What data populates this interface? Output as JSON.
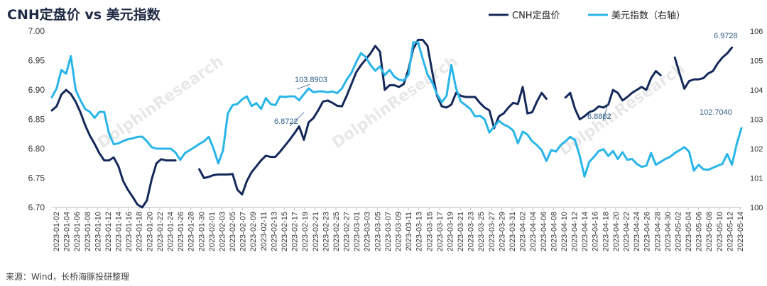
{
  "chart_data": {
    "type": "line",
    "title": "CNH定盘价 vs 美元指数",
    "source": "来源：Wind，长桥海豚投研整理",
    "watermark": "DolphinResearch",
    "colors": {
      "cnh": "#14295a",
      "dxy": "#29b5e8",
      "anno": "#2e5c8a",
      "title": "#1f2a44"
    },
    "y_left": {
      "min": 6.7,
      "max": 7.0,
      "ticks": [
        "7.00",
        "6.95",
        "6.90",
        "6.85",
        "6.80",
        "6.75",
        "6.70"
      ]
    },
    "y_right": {
      "min": 100,
      "max": 106,
      "ticks": [
        "106",
        "105",
        "104",
        "103",
        "102",
        "101",
        "100"
      ]
    },
    "x_labels": [
      "2023-01-02",
      "2023-01-04",
      "2023-01-06",
      "2023-01-08",
      "2023-01-10",
      "2023-01-12",
      "2023-01-14",
      "2023-01-16",
      "2023-01-18",
      "2023-01-20",
      "2023-01-22",
      "2023-01-24",
      "2023-01-26",
      "2023-01-28",
      "2023-01-30",
      "2023-02-01",
      "2023-02-03",
      "2023-02-05",
      "2023-02-07",
      "2023-02-09",
      "2023-02-11",
      "2023-02-13",
      "2023-02-15",
      "2023-02-17",
      "2023-02-19",
      "2023-02-21",
      "2023-02-23",
      "2023-02-25",
      "2023-02-27",
      "2023-03-01",
      "2023-03-03",
      "2023-03-05",
      "2023-03-07",
      "2023-03-09",
      "2023-03-11",
      "2023-03-13",
      "2023-03-15",
      "2023-03-17",
      "2023-03-19",
      "2023-03-21",
      "2023-03-23",
      "2023-03-25",
      "2023-03-27",
      "2023-03-29",
      "2023-03-31",
      "2023-04-02",
      "2023-04-04",
      "2023-04-06",
      "2023-04-08",
      "2023-04-10",
      "2023-04-12",
      "2023-04-14",
      "2023-04-16",
      "2023-04-18",
      "2023-04-20",
      "2023-04-22",
      "2023-04-24",
      "2023-04-26",
      "2023-04-28",
      "2023-04-30",
      "2023-05-02",
      "2023-05-04",
      "2023-05-06",
      "2023-05-08",
      "2023-05-10",
      "2023-05-12",
      "2023-05-14"
    ],
    "day_count": 134,
    "series": [
      {
        "name": "CNH定盘价",
        "axis": "left",
        "points": [
          [
            0,
            6.865
          ],
          [
            1,
            6.872
          ],
          [
            2,
            6.892
          ],
          [
            3,
            6.9
          ],
          [
            4,
            6.893
          ],
          [
            5,
            6.88
          ],
          [
            6,
            6.862
          ],
          [
            7,
            6.84
          ],
          [
            8,
            6.822
          ],
          [
            9,
            6.808
          ],
          [
            10,
            6.792
          ],
          [
            11,
            6.78
          ],
          [
            12,
            6.78
          ],
          [
            13,
            6.785
          ],
          [
            14,
            6.77
          ],
          [
            15,
            6.745
          ],
          [
            16,
            6.73
          ],
          [
            17,
            6.718
          ],
          [
            18,
            6.705
          ],
          [
            19,
            6.7
          ],
          [
            20,
            6.712
          ],
          [
            21,
            6.748
          ],
          [
            22,
            6.775
          ],
          [
            23,
            6.782
          ],
          [
            24,
            6.78
          ],
          [
            25,
            6.78
          ],
          [
            26,
            6.78
          ],
          [
            27,
            null
          ],
          [
            30,
            null
          ],
          [
            31,
            6.765
          ],
          [
            32,
            6.75
          ],
          [
            33,
            6.752
          ],
          [
            34,
            6.755
          ],
          [
            35,
            6.756
          ],
          [
            36,
            6.756
          ],
          [
            37,
            6.756
          ],
          [
            38,
            6.757
          ],
          [
            39,
            6.73
          ],
          [
            40,
            6.722
          ],
          [
            41,
            6.745
          ],
          [
            42,
            6.76
          ],
          [
            43,
            6.77
          ],
          [
            44,
            6.78
          ],
          [
            45,
            6.788
          ],
          [
            46,
            6.786
          ],
          [
            47,
            6.786
          ],
          [
            48,
            6.795
          ],
          [
            49,
            6.805
          ],
          [
            50,
            6.815
          ],
          [
            51,
            6.826
          ],
          [
            52,
            6.838
          ],
          [
            53,
            6.815
          ],
          [
            54,
            6.845
          ],
          [
            55,
            6.852
          ],
          [
            56,
            6.865
          ],
          [
            57,
            6.88
          ],
          [
            58,
            6.882
          ],
          [
            59,
            6.878
          ],
          [
            60,
            6.873
          ],
          [
            61,
            6.872
          ],
          [
            62,
            6.89
          ],
          [
            63,
            6.91
          ],
          [
            64,
            6.93
          ],
          [
            65,
            6.942
          ],
          [
            66,
            6.952
          ],
          [
            67,
            6.962
          ],
          [
            68,
            6.975
          ],
          [
            69,
            6.965
          ],
          [
            70,
            6.9
          ],
          [
            71,
            6.908
          ],
          [
            72,
            6.908
          ],
          [
            73,
            6.905
          ],
          [
            74,
            6.91
          ],
          [
            75,
            6.935
          ],
          [
            76,
            6.97
          ],
          [
            77,
            6.985
          ],
          [
            78,
            6.985
          ],
          [
            79,
            6.975
          ],
          [
            80,
            6.93
          ],
          [
            81,
            6.89
          ],
          [
            82,
            6.872
          ],
          [
            83,
            6.87
          ],
          [
            84,
            6.875
          ],
          [
            85,
            6.895
          ],
          [
            86,
            6.89
          ],
          [
            87,
            6.888
          ],
          [
            88,
            6.888
          ],
          [
            89,
            6.888
          ],
          [
            90,
            6.878
          ],
          [
            91,
            6.87
          ],
          [
            92,
            6.865
          ],
          [
            93,
            6.835
          ],
          [
            94,
            6.855
          ],
          [
            95,
            6.86
          ],
          [
            96,
            6.87
          ],
          [
            97,
            6.878
          ],
          [
            98,
            6.876
          ],
          [
            99,
            6.905
          ],
          [
            100,
            6.86
          ],
          [
            101,
            6.862
          ],
          [
            102,
            6.88
          ],
          [
            103,
            6.895
          ],
          [
            104,
            6.885
          ],
          [
            105,
            null
          ],
          [
            107,
            null
          ],
          [
            108,
            6.887
          ],
          [
            109,
            6.895
          ],
          [
            110,
            6.868
          ],
          [
            111,
            6.85
          ],
          [
            112,
            6.855
          ],
          [
            113,
            6.862
          ],
          [
            114,
            6.865
          ],
          [
            115,
            6.872
          ],
          [
            116,
            6.87
          ],
          [
            117,
            6.875
          ],
          [
            118,
            6.9
          ],
          [
            119,
            6.895
          ],
          [
            120,
            6.882
          ],
          [
            121,
            6.888
          ],
          [
            122,
            6.895
          ],
          [
            123,
            6.9
          ],
          [
            124,
            6.905
          ],
          [
            125,
            6.9
          ],
          [
            126,
            6.92
          ],
          [
            127,
            6.932
          ],
          [
            128,
            6.925
          ],
          [
            129,
            null
          ],
          [
            131,
            null
          ],
          [
            131,
            6.955
          ],
          [
            132,
            6.928
          ],
          [
            133,
            6.902
          ],
          [
            134,
            6.915
          ],
          [
            135,
            6.918
          ],
          [
            136,
            6.918
          ],
          [
            137,
            6.92
          ],
          [
            138,
            6.928
          ],
          [
            139,
            6.932
          ],
          [
            140,
            6.945
          ],
          [
            141,
            6.955
          ],
          [
            142,
            6.962
          ],
          [
            143,
            6.972
          ]
        ]
      },
      {
        "name": "美元指数（右轴）",
        "axis": "right",
        "points": [
          [
            0,
            103.75
          ],
          [
            1,
            104.05
          ],
          [
            2,
            104.68
          ],
          [
            3,
            104.55
          ],
          [
            4,
            105.15
          ],
          [
            5,
            104.0
          ],
          [
            6,
            103.65
          ],
          [
            7,
            103.35
          ],
          [
            8,
            103.25
          ],
          [
            9,
            103.05
          ],
          [
            10,
            103.25
          ],
          [
            11,
            103.25
          ],
          [
            12,
            102.52
          ],
          [
            13,
            102.15
          ],
          [
            14,
            102.18
          ],
          [
            15,
            102.26
          ],
          [
            16,
            102.32
          ],
          [
            17,
            102.35
          ],
          [
            18,
            102.4
          ],
          [
            19,
            102.41
          ],
          [
            20,
            102.25
          ],
          [
            21,
            102.05
          ],
          [
            22,
            102.0
          ],
          [
            23,
            102.0
          ],
          [
            24,
            102.0
          ],
          [
            25,
            102.0
          ],
          [
            26,
            101.87
          ],
          [
            27,
            101.62
          ],
          [
            28,
            101.85
          ],
          [
            29,
            101.95
          ],
          [
            30,
            102.05
          ],
          [
            31,
            102.16
          ],
          [
            32,
            102.25
          ],
          [
            33,
            102.4
          ],
          [
            34,
            102.0
          ],
          [
            35,
            101.5
          ],
          [
            36,
            101.95
          ],
          [
            37,
            103.2
          ],
          [
            38,
            103.48
          ],
          [
            39,
            103.52
          ],
          [
            40,
            103.68
          ],
          [
            41,
            103.78
          ],
          [
            42,
            103.45
          ],
          [
            43,
            103.55
          ],
          [
            44,
            103.35
          ],
          [
            45,
            103.72
          ],
          [
            46,
            103.52
          ],
          [
            47,
            103.48
          ],
          [
            48,
            103.78
          ],
          [
            49,
            103.76
          ],
          [
            50,
            103.78
          ],
          [
            51,
            103.78
          ],
          [
            52,
            103.65
          ],
          [
            53,
            103.85
          ],
          [
            54,
            104.05
          ],
          [
            55,
            103.92
          ],
          [
            56,
            103.95
          ],
          [
            57,
            103.95
          ],
          [
            58,
            103.92
          ],
          [
            59,
            103.95
          ],
          [
            60,
            103.89
          ],
          [
            61,
            104.05
          ],
          [
            62,
            104.35
          ],
          [
            63,
            104.58
          ],
          [
            64,
            104.95
          ],
          [
            65,
            105.25
          ],
          [
            66,
            105.12
          ],
          [
            67,
            104.85
          ],
          [
            68,
            104.65
          ],
          [
            69,
            104.8
          ],
          [
            70,
            104.5
          ],
          [
            71,
            104.68
          ],
          [
            72,
            104.45
          ],
          [
            73,
            104.35
          ],
          [
            74,
            104.32
          ],
          [
            75,
            104.52
          ],
          [
            76,
            105.62
          ],
          [
            77,
            105.62
          ],
          [
            78,
            105.05
          ],
          [
            79,
            104.52
          ],
          [
            80,
            104.25
          ],
          [
            81,
            103.85
          ],
          [
            82,
            103.58
          ],
          [
            83,
            103.8
          ],
          [
            84,
            104.85
          ],
          [
            85,
            104.05
          ],
          [
            86,
            103.6
          ],
          [
            87,
            103.48
          ],
          [
            88,
            103.35
          ],
          [
            89,
            103.1
          ],
          [
            90,
            103.12
          ],
          [
            91,
            103.0
          ],
          [
            92,
            102.55
          ],
          [
            93,
            102.75
          ],
          [
            94,
            102.95
          ],
          [
            95,
            102.82
          ],
          [
            96,
            102.75
          ],
          [
            97,
            102.62
          ],
          [
            98,
            102.18
          ],
          [
            99,
            102.58
          ],
          [
            100,
            102.48
          ],
          [
            101,
            102.25
          ],
          [
            102,
            102.12
          ],
          [
            103,
            101.95
          ],
          [
            104,
            101.58
          ],
          [
            105,
            101.95
          ],
          [
            106,
            101.9
          ],
          [
            107,
            102.12
          ],
          [
            108,
            102.25
          ],
          [
            109,
            102.4
          ],
          [
            110,
            102.3
          ],
          [
            111,
            101.75
          ],
          [
            112,
            101.05
          ],
          [
            113,
            101.55
          ],
          [
            114,
            101.72
          ],
          [
            115,
            101.92
          ],
          [
            116,
            101.98
          ],
          [
            117,
            101.75
          ],
          [
            118,
            101.92
          ],
          [
            119,
            101.65
          ],
          [
            120,
            101.88
          ],
          [
            121,
            101.62
          ],
          [
            122,
            101.65
          ],
          [
            123,
            101.48
          ],
          [
            124,
            101.38
          ],
          [
            125,
            101.42
          ],
          [
            126,
            101.85
          ],
          [
            127,
            101.45
          ],
          [
            128,
            101.55
          ],
          [
            129,
            101.65
          ],
          [
            130,
            101.72
          ],
          [
            131,
            101.85
          ],
          [
            132,
            101.95
          ],
          [
            133,
            102.05
          ],
          [
            134,
            101.9
          ],
          [
            135,
            101.25
          ],
          [
            136,
            101.45
          ],
          [
            137,
            101.3
          ],
          [
            138,
            101.28
          ],
          [
            139,
            101.35
          ],
          [
            140,
            101.42
          ],
          [
            141,
            101.48
          ],
          [
            142,
            101.82
          ],
          [
            143,
            101.45
          ],
          [
            144,
            102.15
          ],
          [
            145,
            102.7
          ]
        ]
      }
    ],
    "annotations": [
      {
        "text": "103.8903",
        "color_key": "anno"
      },
      {
        "text": "6.8722",
        "color_key": "anno"
      },
      {
        "text": "6.8882",
        "color_key": "anno"
      },
      {
        "text": "102.7040",
        "color_key": "anno"
      },
      {
        "text": "6.9728",
        "color_key": "anno"
      }
    ],
    "legend": [
      {
        "label": "CNH定盘价",
        "color_key": "cnh"
      },
      {
        "label": "美元指数（右轴）",
        "color_key": "dxy"
      }
    ]
  }
}
